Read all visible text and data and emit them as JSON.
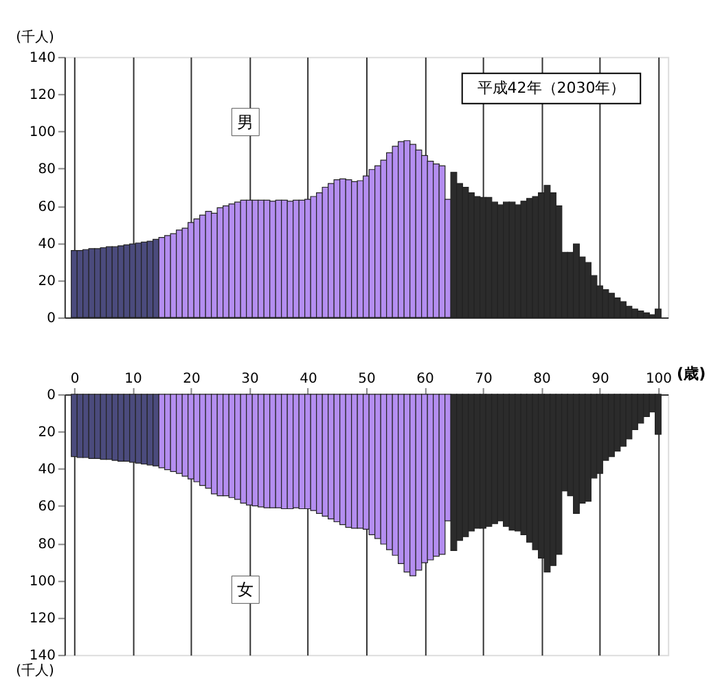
{
  "chart_data": [
    {
      "type": "bar",
      "title": "平成42年（2030年）",
      "ylabel": "(千人)",
      "x": [
        0,
        1,
        2,
        3,
        4,
        5,
        6,
        7,
        8,
        9,
        10,
        11,
        12,
        13,
        14,
        15,
        16,
        17,
        18,
        19,
        20,
        21,
        22,
        23,
        24,
        25,
        26,
        27,
        28,
        29,
        30,
        31,
        32,
        33,
        34,
        35,
        36,
        37,
        38,
        39,
        40,
        41,
        42,
        43,
        44,
        45,
        46,
        47,
        48,
        49,
        50,
        51,
        52,
        53,
        54,
        55,
        56,
        57,
        58,
        59,
        60,
        61,
        62,
        63,
        64,
        65,
        66,
        67,
        68,
        69,
        70,
        71,
        72,
        73,
        74,
        75,
        76,
        77,
        78,
        79,
        80,
        81,
        82,
        83,
        84,
        85,
        86,
        87,
        88,
        89,
        90,
        91,
        92,
        93,
        94,
        95,
        96,
        97,
        98,
        99,
        100
      ],
      "series": [
        {
          "name": "男",
          "values": [
            36,
            36,
            36.5,
            37,
            37,
            37.5,
            38,
            38,
            38.5,
            39,
            39.5,
            40,
            40.5,
            41,
            42,
            43,
            44,
            45,
            47,
            48,
            51,
            53,
            55,
            57,
            56,
            59,
            60,
            61,
            62,
            63,
            63,
            63,
            63,
            63,
            62.5,
            63,
            63,
            62.5,
            63,
            63,
            63.5,
            65,
            67,
            70,
            72,
            74,
            74.5,
            74,
            73,
            73.5,
            76,
            79.5,
            81.5,
            84.5,
            88.5,
            92,
            94.5,
            95,
            93,
            90,
            87,
            84,
            82.5,
            81.5,
            63.5,
            78,
            72,
            70,
            67,
            65,
            64.5,
            64.5,
            62,
            60.5,
            62,
            62,
            60.5,
            62.5,
            64,
            65,
            67,
            71,
            67,
            60,
            35,
            35,
            39.5,
            32.5,
            29.5,
            22.5,
            17,
            15,
            13,
            10.5,
            8.5,
            6,
            4.5,
            3.5,
            2.5,
            1.5,
            4.5
          ],
          "colors": [
            "#4b4b7d",
            "#4b4b7d",
            "#4b4b7d",
            "#4b4b7d",
            "#4b4b7d",
            "#4b4b7d",
            "#4b4b7d",
            "#4b4b7d",
            "#4b4b7d",
            "#4b4b7d",
            "#4b4b7d",
            "#4b4b7d",
            "#4b4b7d",
            "#4b4b7d",
            "#4b4b7d",
            "#b48ef0",
            "#b48ef0",
            "#b48ef0",
            "#b48ef0",
            "#b48ef0",
            "#b48ef0",
            "#b48ef0",
            "#b48ef0",
            "#b48ef0",
            "#b48ef0",
            "#b48ef0",
            "#b48ef0",
            "#b48ef0",
            "#b48ef0",
            "#b48ef0",
            "#b48ef0",
            "#b48ef0",
            "#b48ef0",
            "#b48ef0",
            "#b48ef0",
            "#b48ef0",
            "#b48ef0",
            "#b48ef0",
            "#b48ef0",
            "#b48ef0",
            "#b48ef0",
            "#b48ef0",
            "#b48ef0",
            "#b48ef0",
            "#b48ef0",
            "#b48ef0",
            "#b48ef0",
            "#b48ef0",
            "#b48ef0",
            "#b48ef0",
            "#b48ef0",
            "#b48ef0",
            "#b48ef0",
            "#b48ef0",
            "#b48ef0",
            "#b48ef0",
            "#b48ef0",
            "#b48ef0",
            "#b48ef0",
            "#b48ef0",
            "#b48ef0",
            "#b48ef0",
            "#b48ef0",
            "#b48ef0",
            "#b48ef0",
            "#2b2b2b",
            "#2b2b2b",
            "#2b2b2b",
            "#2b2b2b",
            "#2b2b2b",
            "#2b2b2b",
            "#2b2b2b",
            "#2b2b2b",
            "#2b2b2b",
            "#2b2b2b",
            "#2b2b2b",
            "#2b2b2b",
            "#2b2b2b",
            "#2b2b2b",
            "#2b2b2b",
            "#2b2b2b",
            "#2b2b2b",
            "#2b2b2b",
            "#2b2b2b",
            "#2b2b2b",
            "#2b2b2b",
            "#2b2b2b",
            "#2b2b2b",
            "#2b2b2b",
            "#2b2b2b",
            "#2b2b2b",
            "#2b2b2b",
            "#2b2b2b",
            "#2b2b2b",
            "#2b2b2b",
            "#2b2b2b",
            "#2b2b2b",
            "#2b2b2b",
            "#2b2b2b",
            "#2b2b2b",
            "#2b2b2b"
          ]
        }
      ],
      "xlim": [
        -0.5,
        100.5
      ],
      "xticks": [
        0,
        10,
        20,
        30,
        40,
        50,
        60,
        70,
        80,
        90,
        100
      ],
      "ylim": [
        0,
        140
      ],
      "yticks": [
        0,
        20,
        40,
        60,
        80,
        100,
        120,
        140
      ],
      "grid": "x",
      "tick_labels": "y"
    },
    {
      "type": "bar",
      "xlabel": "(歳)",
      "ylabel": "(千人)",
      "x": [
        0,
        1,
        2,
        3,
        4,
        5,
        6,
        7,
        8,
        9,
        10,
        11,
        12,
        13,
        14,
        15,
        16,
        17,
        18,
        19,
        20,
        21,
        22,
        23,
        24,
        25,
        26,
        27,
        28,
        29,
        30,
        31,
        32,
        33,
        34,
        35,
        36,
        37,
        38,
        39,
        40,
        41,
        42,
        43,
        44,
        45,
        46,
        47,
        48,
        49,
        50,
        51,
        52,
        53,
        54,
        55,
        56,
        57,
        58,
        59,
        60,
        61,
        62,
        63,
        64,
        65,
        66,
        67,
        68,
        69,
        70,
        71,
        72,
        73,
        74,
        75,
        76,
        77,
        78,
        79,
        80,
        81,
        82,
        83,
        84,
        85,
        86,
        87,
        88,
        89,
        90,
        91,
        92,
        93,
        94,
        95,
        96,
        97,
        98,
        99,
        100
      ],
      "series": [
        {
          "name": "女",
          "values": [
            33.5,
            34,
            34,
            34.5,
            34.5,
            35,
            35,
            35.5,
            36,
            36,
            36.5,
            37,
            37.5,
            38,
            38.5,
            39.5,
            40.5,
            41.5,
            42.5,
            44,
            45.5,
            47,
            49,
            50.5,
            53.5,
            54.5,
            54.5,
            55.5,
            56.5,
            58.5,
            59.5,
            60,
            60.5,
            61,
            61,
            61,
            61.5,
            61.5,
            61,
            61.5,
            61.5,
            62.5,
            64,
            65.5,
            67,
            68.5,
            70,
            71.5,
            72,
            72,
            72.5,
            75.5,
            77.5,
            80.5,
            83.5,
            86.5,
            91,
            95.5,
            97.5,
            94.5,
            90.5,
            89,
            87,
            86,
            68,
            84,
            78.5,
            76.5,
            73.5,
            72,
            72,
            71,
            69.5,
            68,
            71,
            73,
            73.5,
            75.5,
            79.5,
            83.5,
            88,
            95.5,
            92,
            86,
            52,
            54.5,
            64,
            58.5,
            57.5,
            45,
            42.5,
            35.5,
            33.5,
            30.5,
            28,
            24,
            19,
            15.5,
            12,
            9.5,
            21.5
          ],
          "colors": [
            "#4b4b7d",
            "#4b4b7d",
            "#4b4b7d",
            "#4b4b7d",
            "#4b4b7d",
            "#4b4b7d",
            "#4b4b7d",
            "#4b4b7d",
            "#4b4b7d",
            "#4b4b7d",
            "#4b4b7d",
            "#4b4b7d",
            "#4b4b7d",
            "#4b4b7d",
            "#4b4b7d",
            "#b48ef0",
            "#b48ef0",
            "#b48ef0",
            "#b48ef0",
            "#b48ef0",
            "#b48ef0",
            "#b48ef0",
            "#b48ef0",
            "#b48ef0",
            "#b48ef0",
            "#b48ef0",
            "#b48ef0",
            "#b48ef0",
            "#b48ef0",
            "#b48ef0",
            "#b48ef0",
            "#b48ef0",
            "#b48ef0",
            "#b48ef0",
            "#b48ef0",
            "#b48ef0",
            "#b48ef0",
            "#b48ef0",
            "#b48ef0",
            "#b48ef0",
            "#b48ef0",
            "#b48ef0",
            "#b48ef0",
            "#b48ef0",
            "#b48ef0",
            "#b48ef0",
            "#b48ef0",
            "#b48ef0",
            "#b48ef0",
            "#b48ef0",
            "#b48ef0",
            "#b48ef0",
            "#b48ef0",
            "#b48ef0",
            "#b48ef0",
            "#b48ef0",
            "#b48ef0",
            "#b48ef0",
            "#b48ef0",
            "#b48ef0",
            "#b48ef0",
            "#b48ef0",
            "#b48ef0",
            "#b48ef0",
            "#b48ef0",
            "#2b2b2b",
            "#2b2b2b",
            "#2b2b2b",
            "#2b2b2b",
            "#2b2b2b",
            "#2b2b2b",
            "#2b2b2b",
            "#2b2b2b",
            "#2b2b2b",
            "#2b2b2b",
            "#2b2b2b",
            "#2b2b2b",
            "#2b2b2b",
            "#2b2b2b",
            "#2b2b2b",
            "#2b2b2b",
            "#2b2b2b",
            "#2b2b2b",
            "#2b2b2b",
            "#2b2b2b",
            "#2b2b2b",
            "#2b2b2b",
            "#2b2b2b",
            "#2b2b2b",
            "#2b2b2b",
            "#2b2b2b",
            "#2b2b2b",
            "#2b2b2b",
            "#2b2b2b",
            "#2b2b2b",
            "#2b2b2b",
            "#2b2b2b",
            "#2b2b2b",
            "#2b2b2b",
            "#2b2b2b",
            "#2b2b2b"
          ]
        }
      ],
      "xlim": [
        -0.5,
        100.5
      ],
      "xticks": [
        0,
        10,
        20,
        30,
        40,
        50,
        60,
        70,
        80,
        90,
        100
      ],
      "ylim": [
        140,
        0
      ],
      "yticks": [
        0,
        20,
        40,
        60,
        80,
        100,
        120,
        140
      ],
      "grid": "x"
    }
  ]
}
